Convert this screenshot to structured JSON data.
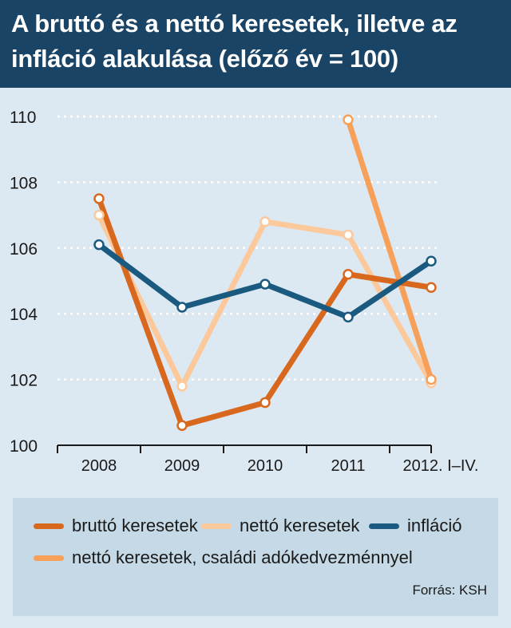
{
  "header": {
    "title": "A bruttó és a nettó keresetek, illetve az infláció alakulása (előző év = 100)"
  },
  "chart_data": {
    "type": "line",
    "categories": [
      "2008",
      "2009",
      "2010",
      "2011",
      "2012. I–IV."
    ],
    "ylim": [
      100,
      110
    ],
    "yticks": [
      100,
      102,
      104,
      106,
      108,
      110
    ],
    "grid": true,
    "series": [
      {
        "name": "nettó keresetek",
        "color": "#fcc99c",
        "values": [
          107.0,
          101.8,
          106.8,
          106.4,
          101.9
        ]
      },
      {
        "name": "nettó keresetek, családi adókedvezménnyel",
        "color": "#f7a05a",
        "values": [
          null,
          null,
          null,
          109.9,
          102.0
        ]
      },
      {
        "name": "bruttó keresetek",
        "color": "#d9681f",
        "values": [
          107.5,
          100.6,
          101.3,
          105.2,
          104.8
        ]
      },
      {
        "name": "infláció",
        "color": "#1b5a80",
        "values": [
          106.1,
          104.2,
          104.9,
          103.9,
          105.6
        ]
      }
    ]
  },
  "legend": {
    "items": [
      {
        "label": "bruttó keresetek",
        "color": "#d9681f"
      },
      {
        "label": "nettó keresetek",
        "color": "#fcc99c"
      },
      {
        "label": "infláció",
        "color": "#1b5a80"
      },
      {
        "label": "nettó keresetek, családi adókedvezménnyel",
        "color": "#f7a05a"
      }
    ]
  },
  "source": "Forrás: KSH"
}
